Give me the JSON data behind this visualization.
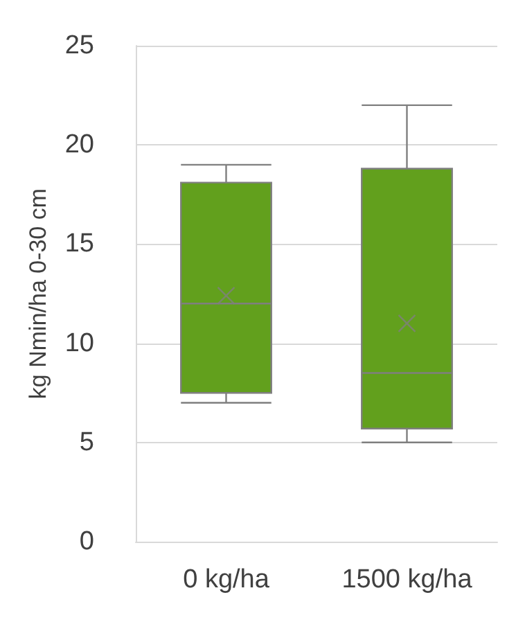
{
  "chart_data": {
    "type": "box",
    "ylabel": "kg Nmin/ha 0-30 cm",
    "categories": [
      "0 kg/ha",
      "1500 kg/ha"
    ],
    "color": "#62a01d",
    "ylim": [
      0,
      25
    ],
    "yticks": [
      0,
      5,
      10,
      15,
      20,
      25
    ],
    "grid": "y",
    "boxes": [
      {
        "low": 7,
        "q1": 7.5,
        "median": 12,
        "q3": 18.1,
        "high": 19,
        "mean": 12.4
      },
      {
        "low": 5,
        "q1": 5.7,
        "median": 8.5,
        "q3": 18.8,
        "high": 22,
        "mean": 11
      }
    ]
  }
}
